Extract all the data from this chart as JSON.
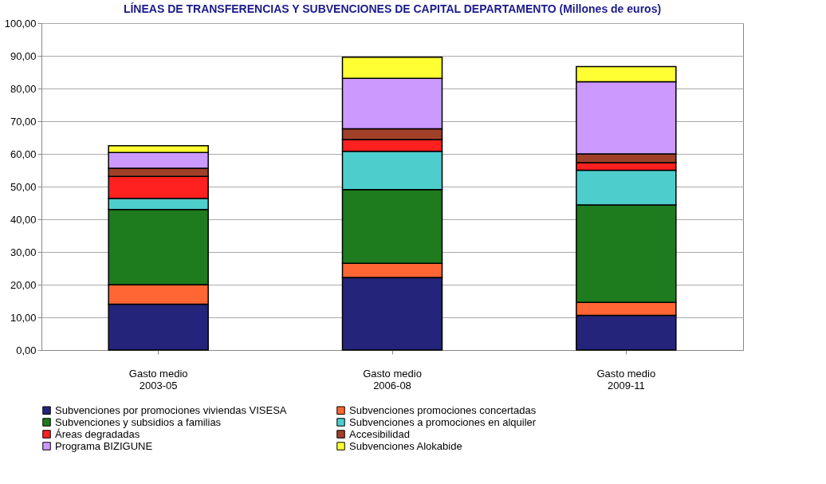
{
  "chart_data": {
    "type": "bar",
    "stacked": true,
    "title": "LÍNEAS DE TRANSFERENCIAS Y SUBVENCIONES DE CAPITAL DEPARTAMENTO (Millones de euros)",
    "categories": [
      "Gasto medio 2003-05",
      "Gasto medio 2006-08",
      "Gasto medio 2009-11"
    ],
    "series": [
      {
        "name": "Subvenciones por promociones viviendas VISESA",
        "color": "#24247a",
        "values": [
          14.0,
          22.2,
          10.6
        ]
      },
      {
        "name": "Subvenciones promociones concertadas",
        "color": "#ff6633",
        "values": [
          6.0,
          4.3,
          4.0
        ]
      },
      {
        "name": "Subvenciones y subsidios a familias",
        "color": "#1e7b1e",
        "values": [
          23.0,
          22.6,
          29.8
        ]
      },
      {
        "name": "Subvenciones a promociones en alquiler",
        "color": "#4ecdcd",
        "values": [
          3.4,
          11.7,
          10.6
        ]
      },
      {
        "name": "Áreas degradadas",
        "color": "#ff2020",
        "values": [
          6.7,
          3.6,
          2.3
        ]
      },
      {
        "name": "Accesibilidad",
        "color": "#a0402a",
        "values": [
          2.5,
          3.3,
          2.7
        ]
      },
      {
        "name": "Programa BIZIGUNE",
        "color": "#cc99ff",
        "values": [
          4.8,
          15.4,
          22.1
        ]
      },
      {
        "name": "Subvenciones Alokabide",
        "color": "#ffff33",
        "values": [
          2.1,
          6.5,
          4.6
        ]
      }
    ],
    "ylim": [
      0,
      100
    ],
    "yticks": [
      {
        "value": 0,
        "label": "0,00"
      },
      {
        "value": 10,
        "label": "10,00"
      },
      {
        "value": 20,
        "label": "20,00"
      },
      {
        "value": 30,
        "label": "30,00"
      },
      {
        "value": 40,
        "label": "40,00"
      },
      {
        "value": 50,
        "label": "50,00"
      },
      {
        "value": 60,
        "label": "60,00"
      },
      {
        "value": 70,
        "label": "70,00"
      },
      {
        "value": 80,
        "label": "80,00"
      },
      {
        "value": 90,
        "label": "90,00"
      },
      {
        "value": 100,
        "label": "100,00"
      }
    ],
    "grid": "y",
    "legend": "bottom"
  }
}
